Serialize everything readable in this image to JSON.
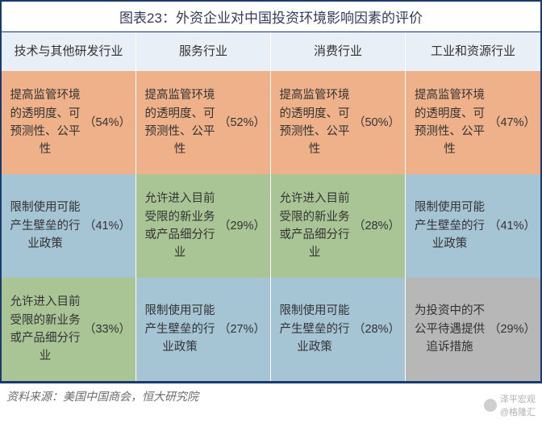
{
  "title": "图表23：外资企业对中国投资环境影响因素的评价",
  "headers": [
    "技术与其他研发行业",
    "服务行业",
    "消费行业",
    "工业和资源行业"
  ],
  "colors": {
    "header_bg": "#e9eff6",
    "orange": "#eeb18a",
    "blue": "#a5c4d4",
    "green": "#a9c495",
    "gray": "#b7b7b7",
    "border": "#1a3a6e"
  },
  "rows": [
    [
      {
        "text": "提高监管环境的透明度、可预测性、公平性",
        "pct": "（54%）",
        "color": "orange"
      },
      {
        "text": "提高监管环境的透明度、可预测性、公平性",
        "pct": "（52%）",
        "color": "orange"
      },
      {
        "text": "提高监管环境的透明度、可预测性、公平性",
        "pct": "（50%）",
        "color": "orange"
      },
      {
        "text": "提高监管环境的透明度、可预测性、公平性",
        "pct": "（47%）",
        "color": "orange"
      }
    ],
    [
      {
        "text": "限制使用可能产生壁垒的行业政策",
        "pct": "（41%）",
        "color": "blue"
      },
      {
        "text": "允许进入目前受限的新业务或产品细分行业",
        "pct": "（29%）",
        "color": "green"
      },
      {
        "text": "允许进入目前受限的新业务或产品细分行业",
        "pct": "（28%）",
        "color": "green"
      },
      {
        "text": "限制使用可能产生壁垒的行业政策",
        "pct": "（41%）",
        "color": "blue"
      }
    ],
    [
      {
        "text": "允许进入目前受限的新业务或产品细分行业",
        "pct": "（33%）",
        "color": "green"
      },
      {
        "text": "限制使用可能产生壁垒的行业政策",
        "pct": "（27%）",
        "color": "blue"
      },
      {
        "text": "限制使用可能产生壁垒的行业政策",
        "pct": "（28%）",
        "color": "blue"
      },
      {
        "text": "为投资中的不公平待遇提供追诉措施",
        "pct": "（29%）",
        "color": "gray"
      }
    ]
  ],
  "source": "资料来源：美国中国商会，恒大研究院",
  "watermark": {
    "line1": "泽平宏观",
    "line2": "@格隆汇"
  }
}
